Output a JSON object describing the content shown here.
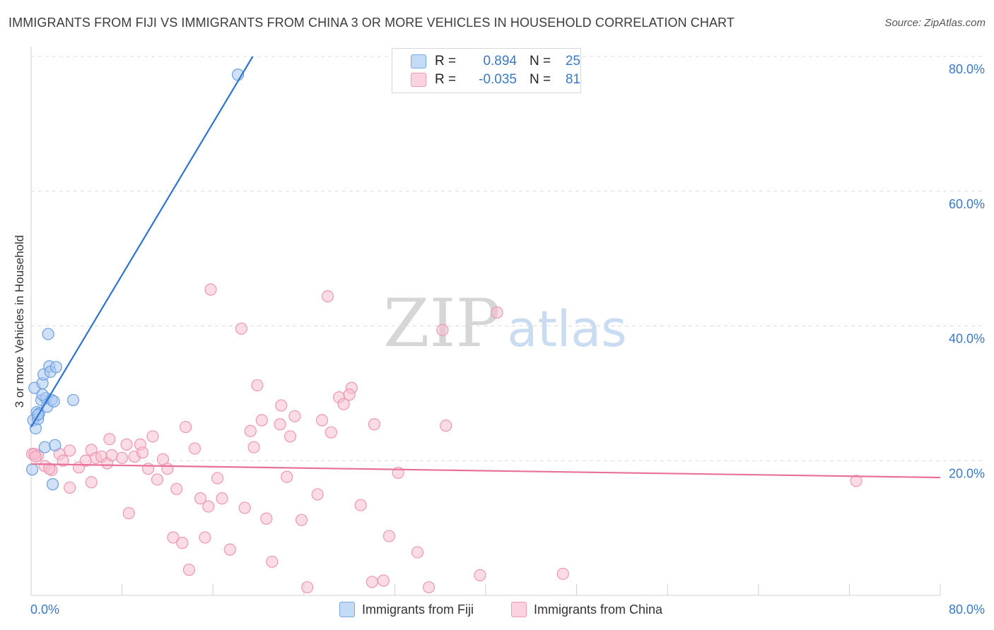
{
  "title": "IMMIGRANTS FROM FIJI VS IMMIGRANTS FROM CHINA 3 OR MORE VEHICLES IN HOUSEHOLD CORRELATION CHART",
  "source": "Source: ZipAtlas.com",
  "watermark": {
    "zip": "ZIP",
    "atlas": "atlas"
  },
  "legend": {
    "fiji": {
      "r_label": "R =",
      "r_value": "0.894",
      "n_label": "N =",
      "n_value": "25"
    },
    "china": {
      "r_label": "R =",
      "r_value": "-0.035",
      "n_label": "N =",
      "n_value": "81"
    }
  },
  "bottom_legend": {
    "fiji": "Immigrants from Fiji",
    "china": "Immigrants from China"
  },
  "colors": {
    "fiji_fill": "#a9c9f0",
    "fiji_stroke": "#6a9fe0",
    "fiji_line": "#2f73d0",
    "china_fill": "#f7bfd0",
    "china_stroke": "#ee97b3",
    "china_line": "#e8709a",
    "grid": "#dcdcdc",
    "axis_text": "#3a78c8"
  },
  "chart_data": {
    "type": "scatter",
    "title": "IMMIGRANTS FROM FIJI VS IMMIGRANTS FROM CHINA 3 OR MORE VEHICLES IN HOUSEHOLD CORRELATION CHART",
    "xlabel": "",
    "ylabel": "3 or more Vehicles in Household",
    "xlim": [
      0,
      80
    ],
    "ylim": [
      0,
      80
    ],
    "x_tick_labels": [
      "0.0%",
      "80.0%"
    ],
    "y_tick_labels": [
      "20.0%",
      "40.0%",
      "60.0%",
      "80.0%"
    ],
    "y_ticks": [
      20,
      40,
      60,
      80
    ],
    "series": [
      {
        "name": "Immigrants from Fiji",
        "key": "fiji",
        "points": [
          [
            0.2,
            26.0
          ],
          [
            0.3,
            30.8
          ],
          [
            0.4,
            24.8
          ],
          [
            0.5,
            27.2
          ],
          [
            0.6,
            26.2
          ],
          [
            0.7,
            27.0
          ],
          [
            0.9,
            29.0
          ],
          [
            1.0,
            31.5
          ],
          [
            1.1,
            32.8
          ],
          [
            1.2,
            22.0
          ],
          [
            1.3,
            29.3
          ],
          [
            1.4,
            28.0
          ],
          [
            1.5,
            38.8
          ],
          [
            1.6,
            34.0
          ],
          [
            1.7,
            33.2
          ],
          [
            1.8,
            29.0
          ],
          [
            1.9,
            16.5
          ],
          [
            2.0,
            28.8
          ],
          [
            2.1,
            22.3
          ],
          [
            2.2,
            33.9
          ],
          [
            3.7,
            29.0
          ],
          [
            18.2,
            77.3
          ],
          [
            0.1,
            18.7
          ],
          [
            0.6,
            26.8
          ],
          [
            1.0,
            29.8
          ]
        ],
        "trend": [
          [
            0.0,
            25.0
          ],
          [
            19.5,
            80.0
          ]
        ]
      },
      {
        "name": "Immigrants from China",
        "key": "china",
        "points": [
          [
            0.1,
            21.0
          ],
          [
            0.6,
            20.8
          ],
          [
            1.2,
            19.2
          ],
          [
            1.8,
            18.6
          ],
          [
            2.5,
            21.0
          ],
          [
            2.8,
            20.0
          ],
          [
            3.4,
            21.5
          ],
          [
            3.4,
            16.0
          ],
          [
            4.2,
            19.0
          ],
          [
            4.8,
            20.0
          ],
          [
            5.3,
            21.6
          ],
          [
            5.3,
            16.8
          ],
          [
            5.7,
            20.4
          ],
          [
            6.2,
            20.6
          ],
          [
            6.7,
            19.6
          ],
          [
            6.9,
            23.2
          ],
          [
            7.1,
            20.8
          ],
          [
            8.0,
            20.4
          ],
          [
            8.4,
            22.4
          ],
          [
            8.6,
            12.2
          ],
          [
            9.1,
            20.6
          ],
          [
            9.6,
            22.4
          ],
          [
            9.8,
            21.2
          ],
          [
            10.3,
            18.8
          ],
          [
            10.7,
            23.6
          ],
          [
            11.1,
            17.2
          ],
          [
            11.6,
            20.2
          ],
          [
            12.0,
            18.8
          ],
          [
            12.5,
            8.6
          ],
          [
            12.8,
            15.8
          ],
          [
            13.3,
            7.8
          ],
          [
            13.6,
            25.0
          ],
          [
            13.9,
            3.8
          ],
          [
            14.4,
            21.8
          ],
          [
            14.9,
            14.4
          ],
          [
            15.3,
            8.6
          ],
          [
            15.6,
            13.2
          ],
          [
            15.8,
            45.4
          ],
          [
            16.4,
            17.4
          ],
          [
            16.8,
            14.4
          ],
          [
            17.5,
            6.8
          ],
          [
            18.5,
            39.6
          ],
          [
            18.8,
            13.0
          ],
          [
            19.3,
            24.4
          ],
          [
            19.6,
            22.0
          ],
          [
            19.9,
            31.2
          ],
          [
            20.3,
            26.0
          ],
          [
            20.7,
            11.4
          ],
          [
            21.2,
            5.0
          ],
          [
            21.9,
            25.4
          ],
          [
            22.0,
            28.2
          ],
          [
            22.5,
            17.6
          ],
          [
            22.8,
            23.6
          ],
          [
            23.2,
            26.6
          ],
          [
            23.8,
            11.2
          ],
          [
            24.3,
            1.2
          ],
          [
            25.2,
            15.0
          ],
          [
            25.6,
            26.0
          ],
          [
            26.1,
            44.4
          ],
          [
            26.4,
            24.2
          ],
          [
            27.1,
            29.4
          ],
          [
            27.5,
            28.4
          ],
          [
            28.2,
            30.8
          ],
          [
            28.0,
            29.8
          ],
          [
            29.0,
            13.4
          ],
          [
            30.0,
            2.0
          ],
          [
            30.2,
            25.4
          ],
          [
            31.0,
            2.2
          ],
          [
            31.5,
            8.8
          ],
          [
            32.3,
            18.2
          ],
          [
            34.0,
            6.4
          ],
          [
            35.0,
            1.2
          ],
          [
            36.2,
            39.4
          ],
          [
            36.5,
            25.2
          ],
          [
            39.5,
            3.0
          ],
          [
            41.0,
            42.0
          ],
          [
            46.8,
            3.2
          ],
          [
            72.6,
            17.0
          ],
          [
            0.3,
            21.0
          ],
          [
            0.4,
            20.6
          ],
          [
            1.6,
            18.8
          ]
        ],
        "trend": [
          [
            0.0,
            19.5
          ],
          [
            80.0,
            17.5
          ]
        ]
      }
    ]
  }
}
